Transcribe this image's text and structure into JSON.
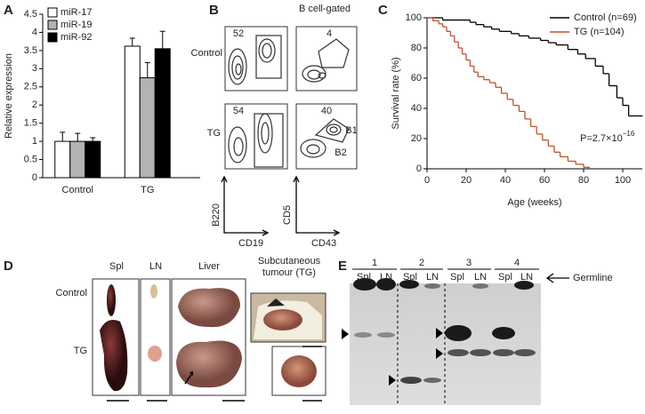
{
  "panel_labels": [
    "A",
    "B",
    "C",
    "D",
    "E"
  ],
  "chart_data": [
    {
      "type": "bar",
      "ylabel": "Relative expression",
      "categories": [
        "Control",
        "TG"
      ],
      "series": [
        {
          "name": "miR-17",
          "color": "#ffffff",
          "values": [
            1.0,
            3.62
          ],
          "errors": [
            0.25,
            0.22
          ]
        },
        {
          "name": "miR-19",
          "color": "#b3b3b3",
          "values": [
            1.0,
            2.75
          ],
          "errors": [
            0.22,
            0.42
          ]
        },
        {
          "name": "miR-92",
          "color": "#000000",
          "values": [
            1.0,
            3.55
          ],
          "errors": [
            0.1,
            0.48
          ]
        }
      ],
      "ylim": [
        0,
        4.5
      ],
      "yticks": [
        0,
        0.5,
        1,
        1.5,
        2,
        2.5,
        3,
        3.5,
        4,
        4.5
      ]
    },
    {
      "type": "line",
      "xlabel": "Age (weeks)",
      "ylabel": "Survival rate (%)",
      "series": [
        {
          "name": "Control (n=69)",
          "color": "#000000",
          "x": [
            0,
            8,
            22,
            25,
            29,
            33,
            37,
            43,
            47,
            52,
            58,
            62,
            66,
            72,
            77,
            81,
            86,
            90,
            93,
            97,
            100,
            103,
            110
          ],
          "values": [
            100,
            98.5,
            97,
            95.5,
            94,
            92.5,
            91,
            89.5,
            88,
            86.5,
            85,
            83.5,
            82,
            79,
            76,
            73,
            68,
            63,
            55,
            47,
            42,
            35,
            35
          ]
        },
        {
          "name": "TG (n=104)",
          "color": "#c0502a",
          "x": [
            0,
            3,
            6,
            8,
            10,
            12,
            14,
            16,
            18,
            20,
            22,
            24,
            26,
            29,
            32,
            35,
            38,
            41,
            44,
            47,
            50,
            53,
            56,
            59,
            62,
            65,
            68,
            72,
            76,
            80,
            83
          ],
          "values": [
            100,
            98,
            96,
            94,
            91,
            88,
            84,
            80,
            76,
            72,
            68,
            64,
            61,
            59,
            57,
            54,
            50,
            46,
            42,
            38,
            33,
            28,
            23,
            19,
            15,
            11,
            8,
            5,
            3,
            1,
            0
          ]
        }
      ],
      "xlim": [
        0,
        110
      ],
      "xticks": [
        0,
        20,
        40,
        60,
        80,
        100
      ],
      "ylim": [
        0,
        100
      ],
      "yticks": [
        0,
        20,
        40,
        60,
        80,
        100
      ],
      "annotation": {
        "text": "P=2.7×10",
        "exponent": "−16"
      }
    }
  ],
  "panel_b": {
    "gate_title": "B cell-gated",
    "rows": [
      "Control",
      "TG"
    ],
    "percents": [
      52,
      4,
      54,
      40
    ],
    "populations": [
      "B1",
      "B2"
    ],
    "axes": {
      "left_y": "B220",
      "left_x": "CD19",
      "right_y": "CD5",
      "right_x": "CD43"
    }
  },
  "panel_d": {
    "tissues": [
      "Spl",
      "LN",
      "Liver"
    ],
    "tumour": "Subcutaneous tumour (TG)",
    "rows": [
      "Control",
      "TG"
    ]
  },
  "panel_e": {
    "lanes": [
      "1",
      "2",
      "3",
      "4"
    ],
    "tissues": [
      "Spl",
      "LN"
    ],
    "germline": "Germline"
  }
}
